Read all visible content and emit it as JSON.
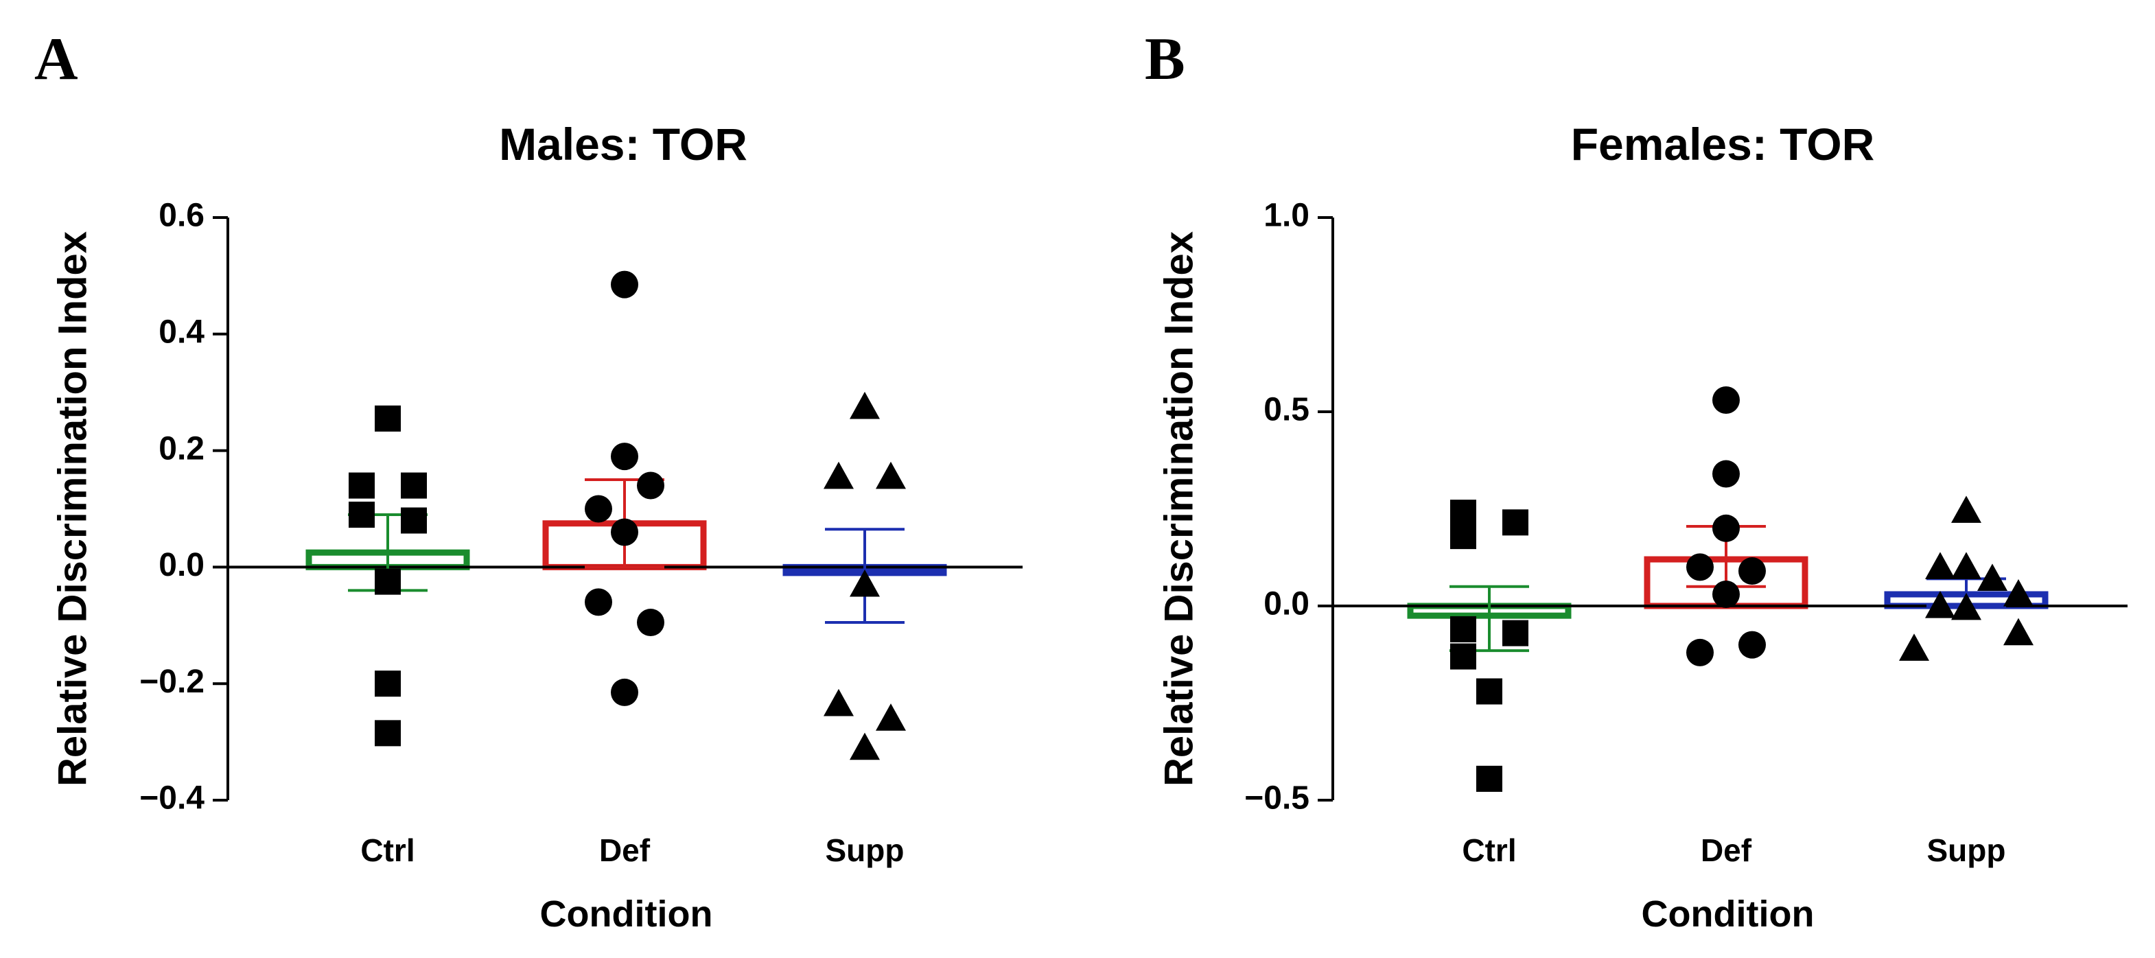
{
  "chart_data": [
    {
      "type": "scatter",
      "panel_label": "A",
      "title": "Males: TOR",
      "xlabel": "Condition",
      "ylabel": "Relative Discrimination Index",
      "categories": [
        "Ctrl",
        "Def",
        "Supp"
      ],
      "ylim": [
        -0.4,
        0.6
      ],
      "yticks": [
        -0.4,
        -0.2,
        0.0,
        0.2,
        0.4,
        0.6
      ],
      "ytick_labels": [
        "−0.4",
        "−0.2",
        "0.0",
        "0.2",
        "0.4",
        "0.6"
      ],
      "grid": false,
      "groups": [
        {
          "category": "Ctrl",
          "color": "#1a8c2e",
          "marker": "square",
          "mean": 0.025,
          "sem_low": -0.04,
          "sem_high": 0.09,
          "points": [
            {
              "dx": 0,
              "y": 0.255
            },
            {
              "dx": -1,
              "y": 0.14
            },
            {
              "dx": 1,
              "y": 0.14
            },
            {
              "dx": -1,
              "y": 0.09
            },
            {
              "dx": 1,
              "y": 0.08
            },
            {
              "dx": 0,
              "y": -0.025
            },
            {
              "dx": 0,
              "y": -0.2
            },
            {
              "dx": 0,
              "y": -0.285
            }
          ]
        },
        {
          "category": "Def",
          "color": "#d42020",
          "marker": "circle",
          "mean": 0.075,
          "sem_low": 0.0,
          "sem_high": 0.15,
          "points": [
            {
              "dx": 0,
              "y": 0.485
            },
            {
              "dx": 0,
              "y": 0.19
            },
            {
              "dx": 1,
              "y": 0.14
            },
            {
              "dx": -1,
              "y": 0.1
            },
            {
              "dx": 0,
              "y": 0.06
            },
            {
              "dx": -1,
              "y": -0.06
            },
            {
              "dx": 1,
              "y": -0.095
            },
            {
              "dx": 0,
              "y": -0.215
            }
          ]
        },
        {
          "category": "Supp",
          "color": "#1c2fb0",
          "marker": "triangle",
          "mean": -0.01,
          "sem_low": -0.095,
          "sem_high": 0.065,
          "points": [
            {
              "dx": 0,
              "y": 0.275
            },
            {
              "dx": -1,
              "y": 0.155
            },
            {
              "dx": 1,
              "y": 0.155
            },
            {
              "dx": 0,
              "y": -0.03
            },
            {
              "dx": -1,
              "y": -0.235
            },
            {
              "dx": 1,
              "y": -0.26
            },
            {
              "dx": 0,
              "y": -0.31
            }
          ]
        }
      ]
    },
    {
      "type": "scatter",
      "panel_label": "B",
      "title": "Females: TOR",
      "xlabel": "Condition",
      "ylabel": "Relative Discrimination Index",
      "categories": [
        "Ctrl",
        "Def",
        "Supp"
      ],
      "ylim": [
        -0.5,
        1.0
      ],
      "yticks": [
        -0.5,
        0.0,
        0.5,
        1.0
      ],
      "ytick_labels": [
        "−0.5",
        "0.0",
        "0.5",
        "1.0"
      ],
      "grid": false,
      "groups": [
        {
          "category": "Ctrl",
          "color": "#1a8c2e",
          "marker": "square",
          "mean": -0.025,
          "sem_low": -0.115,
          "sem_high": 0.05,
          "points": [
            {
              "dx": -1,
              "y": 0.24
            },
            {
              "dx": 1,
              "y": 0.215
            },
            {
              "dx": -1,
              "y": 0.18
            },
            {
              "dx": -1,
              "y": -0.06
            },
            {
              "dx": 1,
              "y": -0.07
            },
            {
              "dx": -1,
              "y": -0.13
            },
            {
              "dx": 0,
              "y": -0.22
            },
            {
              "dx": 0,
              "y": -0.445
            }
          ]
        },
        {
          "category": "Def",
          "color": "#d42020",
          "marker": "circle",
          "mean": 0.12,
          "sem_low": 0.05,
          "sem_high": 0.205,
          "points": [
            {
              "dx": 0,
              "y": 0.53
            },
            {
              "dx": 0,
              "y": 0.34
            },
            {
              "dx": 0,
              "y": 0.2
            },
            {
              "dx": -1,
              "y": 0.1
            },
            {
              "dx": 1,
              "y": 0.09
            },
            {
              "dx": 0,
              "y": 0.03
            },
            {
              "dx": -1,
              "y": -0.12
            },
            {
              "dx": 1,
              "y": -0.1
            }
          ]
        },
        {
          "category": "Supp",
          "color": "#1c2fb0",
          "marker": "triangle",
          "mean": 0.03,
          "sem_low": 0.0,
          "sem_high": 0.07,
          "points": [
            {
              "dx": 0,
              "y": 0.245
            },
            {
              "dx": -1,
              "y": 0.1
            },
            {
              "dx": 0,
              "y": 0.1
            },
            {
              "dx": 1,
              "y": 0.07
            },
            {
              "dx": 2,
              "y": 0.03
            },
            {
              "dx": -1,
              "y": 0.0
            },
            {
              "dx": 0,
              "y": -0.005
            },
            {
              "dx": -2,
              "y": -0.11
            },
            {
              "dx": 2,
              "y": -0.07
            }
          ]
        }
      ]
    }
  ]
}
